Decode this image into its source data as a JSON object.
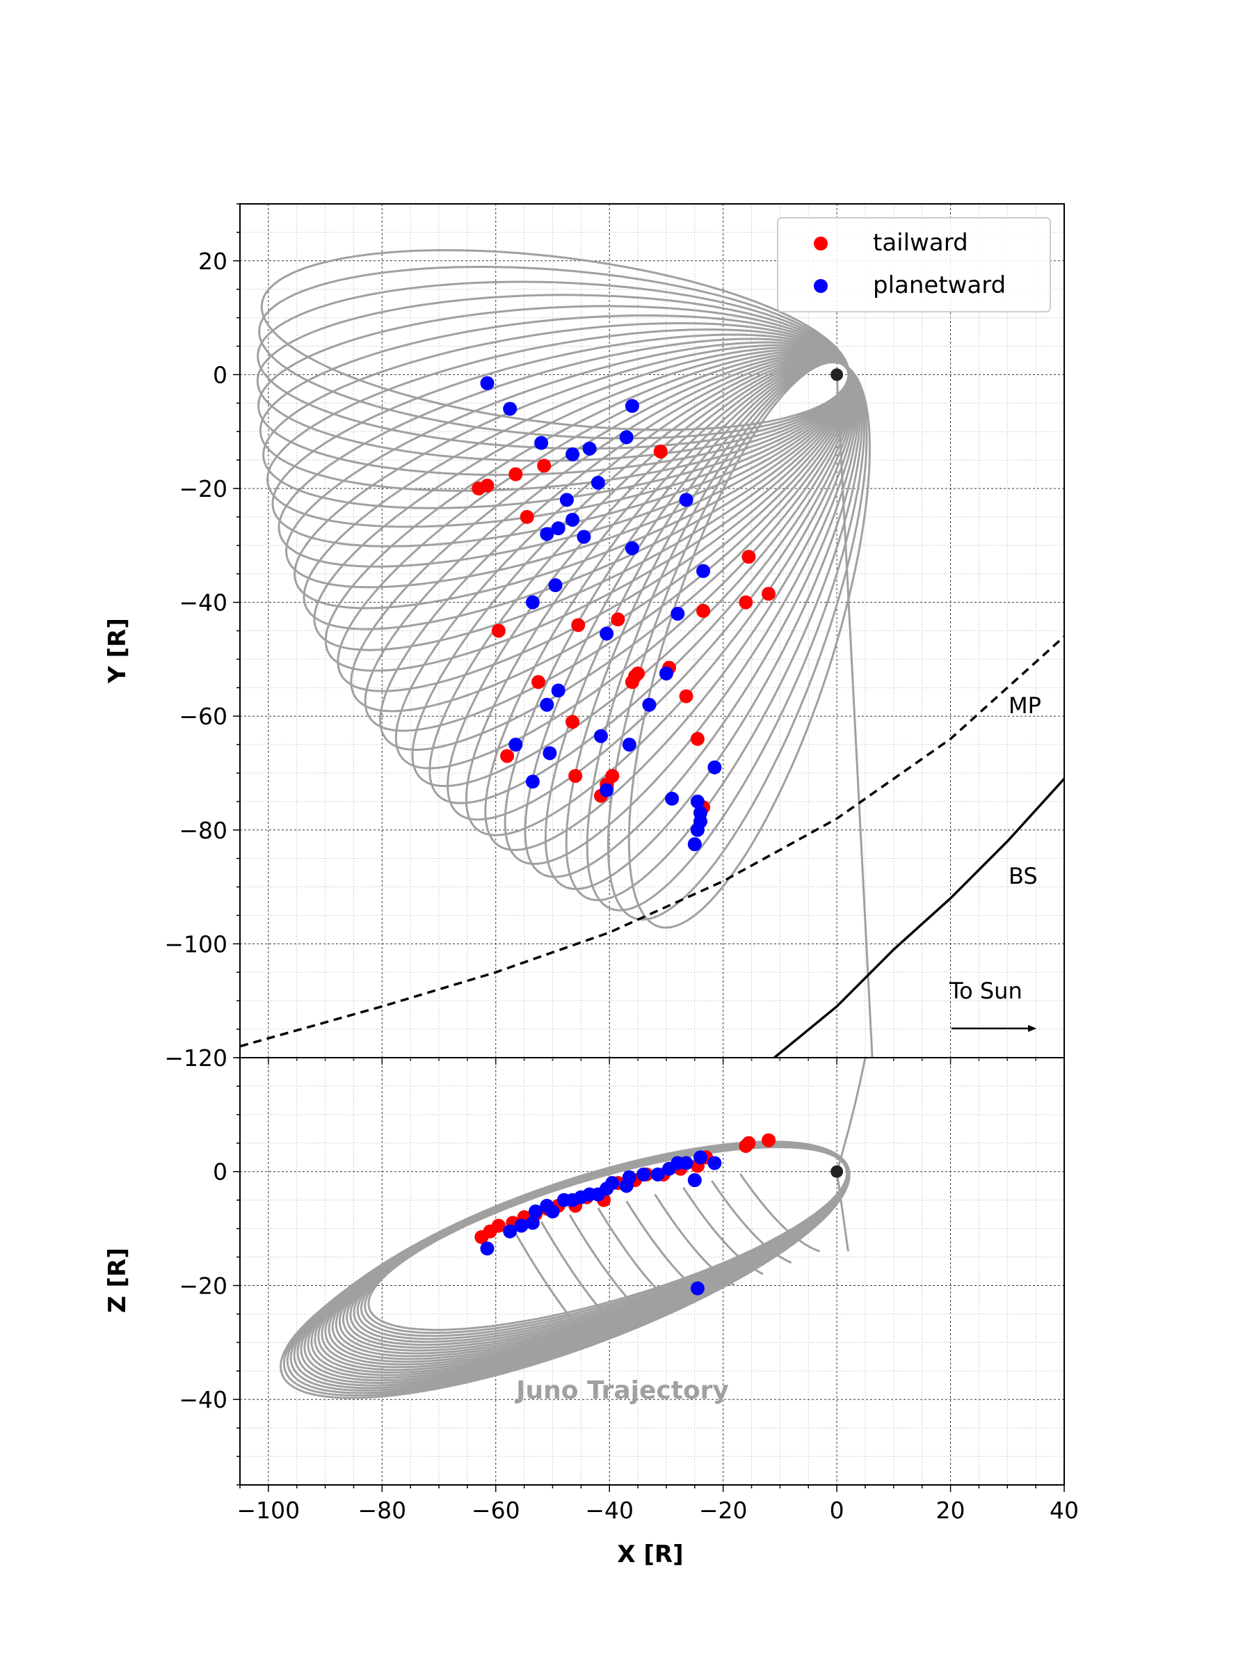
{
  "colors": {
    "tailward": "#ff0000",
    "planetward": "#0000ff",
    "trajectory": "#a0a0a0",
    "boundary": "#000000",
    "planet": "#222222"
  },
  "chart_data": [
    {
      "panel": "top",
      "type": "scatter",
      "xlabel": "",
      "ylabel": "Y [R]",
      "xlim": [
        -105,
        40
      ],
      "ylim": [
        -120,
        30
      ],
      "xticks": [
        -100,
        -80,
        -60,
        -40,
        -20,
        0,
        20,
        40
      ],
      "yticks": [
        20,
        0,
        -20,
        -40,
        -60,
        -80,
        -100,
        -120
      ],
      "ytick_labels": [
        "20",
        "0",
        "−20",
        "−40",
        "−60",
        "−80",
        "−100",
        "−120"
      ],
      "grid": true,
      "legend": {
        "position": "top-right",
        "entries": [
          "tailward",
          "planetward"
        ]
      },
      "annotations": {
        "mp": "MP",
        "bs": "BS",
        "to_sun": "To Sun"
      },
      "series": [
        {
          "name": "tailward",
          "points": [
            [
              -63,
              -20
            ],
            [
              -61.5,
              -19.5
            ],
            [
              -56.5,
              -17.5
            ],
            [
              -51.5,
              -16
            ],
            [
              -31,
              -13.5
            ],
            [
              -54.5,
              -25
            ],
            [
              -59.5,
              -45
            ],
            [
              -45.5,
              -44
            ],
            [
              -38.5,
              -43
            ],
            [
              -23.5,
              -41.5
            ],
            [
              -16,
              -40
            ],
            [
              -15.5,
              -32
            ],
            [
              -12,
              -38.5
            ],
            [
              -35,
              -52.5
            ],
            [
              -35.5,
              -53
            ],
            [
              -36,
              -54
            ],
            [
              -29.5,
              -51.5
            ],
            [
              -26.5,
              -56.5
            ],
            [
              -24.5,
              -64
            ],
            [
              -52.5,
              -54
            ],
            [
              -46.5,
              -61
            ],
            [
              -58,
              -67
            ],
            [
              -46,
              -70.5
            ],
            [
              -39.5,
              -70.5
            ],
            [
              -40.5,
              -72
            ],
            [
              -41.5,
              -74
            ],
            [
              -23.5,
              -76
            ]
          ]
        },
        {
          "name": "planetward",
          "points": [
            [
              -61.5,
              -1.5
            ],
            [
              -57.5,
              -6
            ],
            [
              -36,
              -5.5
            ],
            [
              -52,
              -12
            ],
            [
              -37,
              -11
            ],
            [
              -46.5,
              -14
            ],
            [
              -43.5,
              -13
            ],
            [
              -42,
              -19
            ],
            [
              -47.5,
              -22
            ],
            [
              -26.5,
              -22
            ],
            [
              -51,
              -28
            ],
            [
              -49,
              -27
            ],
            [
              -46.5,
              -25.5
            ],
            [
              -44.5,
              -28.5
            ],
            [
              -36,
              -30.5
            ],
            [
              -23.5,
              -34.5
            ],
            [
              -53.5,
              -40
            ],
            [
              -49.5,
              -37
            ],
            [
              -28,
              -42
            ],
            [
              -40.5,
              -45.5
            ],
            [
              -30,
              -52.5
            ],
            [
              -33,
              -58
            ],
            [
              -49,
              -55.5
            ],
            [
              -51,
              -58
            ],
            [
              -56.5,
              -65
            ],
            [
              -50.5,
              -66.5
            ],
            [
              -41.5,
              -63.5
            ],
            [
              -36.5,
              -65
            ],
            [
              -53.5,
              -71.5
            ],
            [
              -40.5,
              -73
            ],
            [
              -21.5,
              -69
            ],
            [
              -29,
              -74.5
            ],
            [
              -24.5,
              -75
            ],
            [
              -24,
              -77
            ],
            [
              -24,
              -78.5
            ],
            [
              -24.5,
              -80
            ],
            [
              -25,
              -82.5
            ]
          ]
        }
      ]
    },
    {
      "panel": "bottom",
      "type": "scatter",
      "xlabel": "X [R]",
      "ylabel": "Z [R]",
      "xlim": [
        -105,
        40
      ],
      "ylim": [
        -55,
        20
      ],
      "xticks": [
        -100,
        -80,
        -60,
        -40,
        -20,
        0,
        20,
        40
      ],
      "xtick_labels": [
        "−100",
        "−80",
        "−60",
        "−40",
        "−20",
        "0",
        "20",
        "40"
      ],
      "yticks": [
        0,
        -20,
        -40
      ],
      "ytick_labels": [
        "0",
        "−20",
        "−40"
      ],
      "grid": true,
      "watermark": "Juno Trajectory",
      "series": [
        {
          "name": "tailward",
          "points": [
            [
              -62.5,
              -11.5
            ],
            [
              -61,
              -10.5
            ],
            [
              -59.5,
              -9.5
            ],
            [
              -57,
              -9
            ],
            [
              -55,
              -8
            ],
            [
              -53,
              -7.5
            ],
            [
              -51,
              -6.5
            ],
            [
              -49,
              -6
            ],
            [
              -46,
              -6
            ],
            [
              -44,
              -4.5
            ],
            [
              -41,
              -5
            ],
            [
              -38.5,
              -2
            ],
            [
              -35.5,
              -1.5
            ],
            [
              -33.5,
              -0.5
            ],
            [
              -30.5,
              -0.5
            ],
            [
              -27.5,
              0.5
            ],
            [
              -24.5,
              1
            ],
            [
              -23,
              2.5
            ],
            [
              -16,
              4.5
            ],
            [
              -15.5,
              5
            ],
            [
              -12,
              5.5
            ]
          ]
        },
        {
          "name": "planetward",
          "points": [
            [
              -61.5,
              -13.5
            ],
            [
              -57.5,
              -10.5
            ],
            [
              -55.5,
              -9.5
            ],
            [
              -53.5,
              -9
            ],
            [
              -53,
              -7
            ],
            [
              -51,
              -6
            ],
            [
              -50,
              -7
            ],
            [
              -48,
              -5
            ],
            [
              -46.5,
              -5
            ],
            [
              -45,
              -4.5
            ],
            [
              -43.5,
              -4
            ],
            [
              -42,
              -4
            ],
            [
              -40.5,
              -3
            ],
            [
              -39.5,
              -2
            ],
            [
              -37,
              -2.5
            ],
            [
              -36.5,
              -1
            ],
            [
              -34,
              -0.5
            ],
            [
              -31.5,
              -0.5
            ],
            [
              -29.5,
              0.5
            ],
            [
              -28,
              1.5
            ],
            [
              -26.5,
              1.5
            ],
            [
              -25,
              -1.5
            ],
            [
              -24,
              2.5
            ],
            [
              -21.5,
              1.5
            ],
            [
              -24.5,
              -20.5
            ]
          ]
        }
      ]
    }
  ]
}
